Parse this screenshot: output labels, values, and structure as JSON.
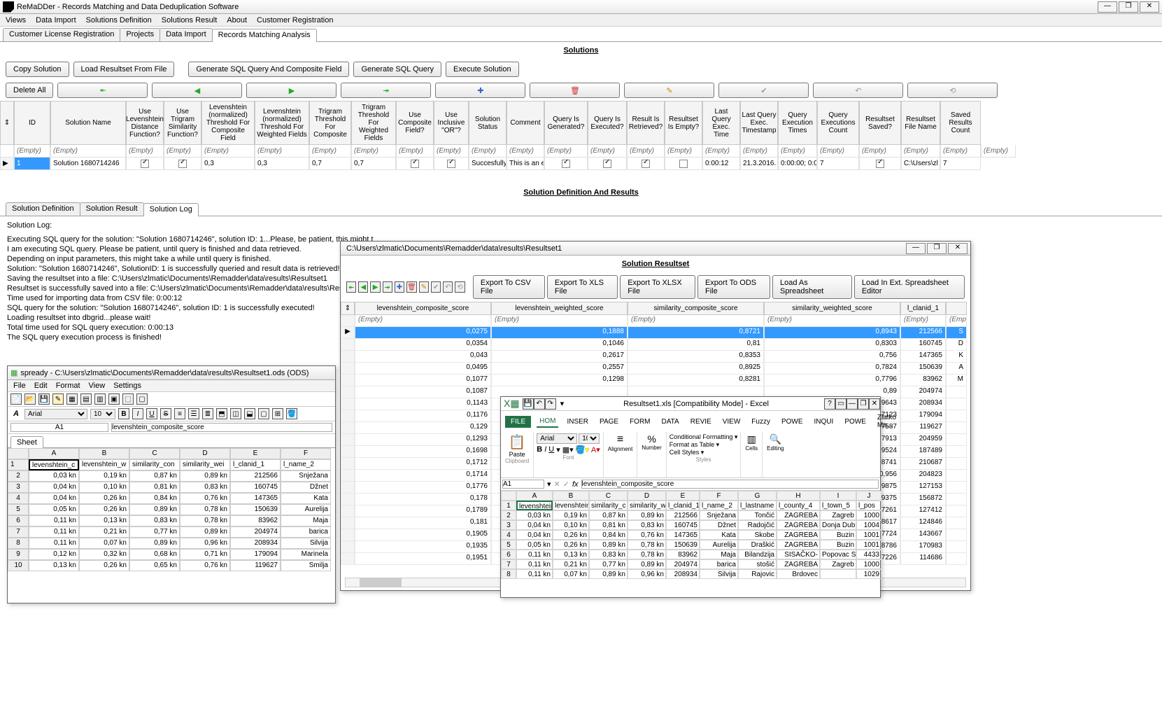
{
  "app": {
    "title": "ReMaDDer - Records Matching and Data Deduplication Software",
    "menu": [
      "Views",
      "Data Import",
      "Solutions Definition",
      "Solutions Result",
      "About",
      "Customer Registration"
    ],
    "mainTabs": [
      "Customer License Registration",
      "Projects",
      "Data Import",
      "Records Matching Analysis"
    ],
    "activeMainTab": 3
  },
  "solutions": {
    "heading": "Solutions",
    "buttons": {
      "copy": "Copy Solution",
      "load": "Load Resultset From File",
      "gen_comp": "Generate SQL Query And Composite Field",
      "gen_sql": "Generate SQL Query",
      "exec": "Execute Solution",
      "delAll": "Delete All"
    },
    "columns": [
      "",
      "ID",
      "Solution Name",
      "Use Levenshtein Distance Function?",
      "Use Trigram Similarity Function?",
      "Levenshtein (normalized) Threshold For Composite Field",
      "Levenshtein (normalized) Threshold For Weighted Fields",
      "Trigram Threshold For Composite",
      "Trigram Threshold For Weighted Fields",
      "Use Composite Field?",
      "Use Inclusive \"OR\"?",
      "Solution Status",
      "Comment",
      "Query Is Generated?",
      "Query Is Executed?",
      "Result Is Retrieved?",
      "Resultset Is Empty?",
      "Last Query Exec. Time",
      "Last Query Exec. Timestamp",
      "Query Execution Times",
      "Query Executions Count",
      "Resultset Saved?",
      "Resultset File Name",
      "Saved Results Count"
    ],
    "filter": "(Empty)",
    "row": {
      "marker": "▶",
      "id": "1",
      "name": "Solution 1680714246",
      "lev": "on",
      "tri": "on",
      "levc": "0,3",
      "levw": "0,3",
      "tric": "0,7",
      "triw": "0,7",
      "comp": "on",
      "or": "on",
      "status": "Succesfully",
      "comment": "This is an e",
      "gen": "on",
      "exec": "on",
      "retr": "on",
      "empty": "off",
      "time": "0:00:12",
      "ts": "21.3.2016. 1",
      "times": "0:00:00; 0:0",
      "count": "7",
      "saved": "on",
      "file": "C:\\Users\\zl",
      "sc": "7"
    }
  },
  "def": {
    "heading": "Solution Definition And Results",
    "tabs": [
      "Solution Definition",
      "Solution Result",
      "Solution Log"
    ],
    "activeTab": 2,
    "logTitle": "Solution Log:",
    "log": [
      "Executing SQL query for the solution: \"Solution 1680714246\", solution ID: 1...Please, be patient, this might t",
      "I am executing SQL query. Please be patient, until query is finished and data retrieved.",
      "Depending on input parameters, this might take a while until query is finished.",
      "Solution: \"Solution 1680714246\", SolutionID: 1 is successfully queried and result data is retrieved!",
      "Saving the resultset into a file: C:\\Users\\zlmatic\\Documents\\Remadder\\data\\results\\Resultset1",
      "Resultset is successfully saved into a file: C:\\Users\\zlmatic\\Documents\\Remadder\\data\\results\\Resultset1",
      "Time used for importing data from CSV file: 0:00:12",
      "SQL query for the solution: \"Solution 1680714246\", solution ID: 1 is successfully executed!",
      "Loading resultset into dbgrid...please wait!",
      "Total time used for SQL query execution: 0:00:13",
      "The SQL query execution process is finished!"
    ]
  },
  "rs": {
    "title": "C:\\Users\\zlmatic\\Documents\\Remadder\\data\\results\\Resultset1",
    "heading": "Solution Resultset",
    "buttons": {
      "csv": "Export To CSV File",
      "xls": "Export To XLS File",
      "xlsx": "Export To XLSX File",
      "ods": "Export To ODS File",
      "spread": "Load As Spreadsheet",
      "ext": "Load In Ext. Spreadsheet Editor"
    },
    "cols": [
      "levenshtein_composite_score",
      "levenshtein_weighted_score",
      "similarity_composite_score",
      "similarity_weighted_score",
      "l_clanid_1",
      ""
    ],
    "rows": [
      [
        "0,0275",
        "0,1888",
        "0,8721",
        "0,8943",
        "212566",
        "S"
      ],
      [
        "0,0354",
        "0,1046",
        "0,81",
        "0,8303",
        "160745",
        "D"
      ],
      [
        "0,043",
        "0,2617",
        "0,8353",
        "0,756",
        "147365",
        "K"
      ],
      [
        "0,0495",
        "0,2557",
        "0,8925",
        "0,7824",
        "150639",
        "A"
      ],
      [
        "0,1077",
        "0,1298",
        "0,8281",
        "0,7796",
        "83962",
        "M"
      ],
      [
        "0,1087",
        "",
        "",
        "0,89",
        "204974",
        ""
      ],
      [
        "0,1143",
        "",
        "",
        "0,9643",
        "208934",
        ""
      ],
      [
        "0,1176",
        "",
        "",
        "0,7123",
        "179094",
        ""
      ],
      [
        "0,129",
        "",
        "",
        "0,7587",
        "119627",
        ""
      ],
      [
        "0,1293",
        "",
        "",
        "0,7913",
        "204959",
        ""
      ],
      [
        "0,1698",
        "",
        "",
        "0,9524",
        "187489",
        ""
      ],
      [
        "0,1712",
        "",
        "",
        "0,8741",
        "210687",
        ""
      ],
      [
        "0,1714",
        "",
        "",
        "0,956",
        "204823",
        ""
      ],
      [
        "0,1776",
        "",
        "",
        "0,9875",
        "127153",
        ""
      ],
      [
        "0,178",
        "",
        "",
        "0,9375",
        "156872",
        ""
      ],
      [
        "0,1789",
        "",
        "",
        "0,7261",
        "127412",
        ""
      ],
      [
        "0,181",
        "",
        "",
        "0,8617",
        "124846",
        ""
      ],
      [
        "0,1905",
        "",
        "",
        "0,7724",
        "143667",
        ""
      ],
      [
        "0,1935",
        "",
        "",
        "0,8786",
        "170983",
        ""
      ],
      [
        "0,1951",
        "",
        "",
        "0,7226",
        "114686",
        ""
      ]
    ]
  },
  "ods": {
    "title": "spready - C:\\Users\\zlmatic\\Documents\\Remadder\\data\\results\\Resultset1.ods (ODS)",
    "menu": [
      "File",
      "Edit",
      "Format",
      "View",
      "Settings"
    ],
    "font": "Arial",
    "size": "10",
    "cellref": "A1",
    "formula": "levenshtein_composite_score",
    "sheet": "Sheet",
    "cols": [
      "",
      "A",
      "B",
      "C",
      "D",
      "E",
      "F"
    ],
    "rows": [
      [
        "1",
        "levenshtein_c",
        "levenshtein_w",
        "similarity_con",
        "similarity_wei",
        "l_clanid_1",
        "l_name_2"
      ],
      [
        "2",
        "0,03 kn",
        "0,19 kn",
        "0,87 kn",
        "0,89 kn",
        "212566",
        "Snježana"
      ],
      [
        "3",
        "0,04 kn",
        "0,10 kn",
        "0,81 kn",
        "0,83 kn",
        "160745",
        "Džnet"
      ],
      [
        "4",
        "0,04 kn",
        "0,26 kn",
        "0,84 kn",
        "0,76 kn",
        "147365",
        "Kata"
      ],
      [
        "5",
        "0,05 kn",
        "0,26 kn",
        "0,89 kn",
        "0,78 kn",
        "150639",
        "Aurelija"
      ],
      [
        "6",
        "0,11 kn",
        "0,13 kn",
        "0,83 kn",
        "0,78 kn",
        "83962",
        "Maja"
      ],
      [
        "7",
        "0,11 kn",
        "0,21 kn",
        "0,77 kn",
        "0,89 kn",
        "204974",
        "barica"
      ],
      [
        "8",
        "0,11 kn",
        "0,07 kn",
        "0,89 kn",
        "0,96 kn",
        "208934",
        "Silvija"
      ],
      [
        "9",
        "0,12 kn",
        "0,32 kn",
        "0,68 kn",
        "0,71 kn",
        "179094",
        "Marinela"
      ],
      [
        "10",
        "0,13 kn",
        "0,26 kn",
        "0,65 kn",
        "0,76 kn",
        "119627",
        "Smilja"
      ]
    ]
  },
  "xl": {
    "title": "Resultset1.xls [Compatibility Mode] - Excel",
    "tabs": [
      "HOM",
      "INSER",
      "PAGE",
      "FORM",
      "DATA",
      "REVIE",
      "VIEW",
      "Fuzzy",
      "POWE",
      "INQUI",
      "POWE",
      "Zlatko Ma..."
    ],
    "file": "FILE",
    "groups": {
      "clip": "Clipboard",
      "font": "Font",
      "align": "Alignment",
      "num": "Number",
      "styles": "Styles",
      "cells": "Cells",
      "edit": "Editing"
    },
    "styleItems": [
      "Conditional Formatting ▾",
      "Format as Table ▾",
      "Cell Styles ▾"
    ],
    "paste": "Paste",
    "font": "Arial",
    "size": "10",
    "cellref": "A1",
    "formula": "levenshtein_composite_score",
    "cols": [
      "",
      "A",
      "B",
      "C",
      "D",
      "E",
      "F",
      "G",
      "H",
      "I",
      "J"
    ],
    "rows": [
      [
        "1",
        "levenshtein",
        "levenshtein",
        "similarity_c",
        "similarity_w",
        "l_clanid_1",
        "l_name_2",
        "l_lastname",
        "l_county_4",
        "l_town_5",
        "l_pos"
      ],
      [
        "2",
        "0,03 kn",
        "0,19 kn",
        "0,87 kn",
        "0,89 kn",
        "212566",
        "Snježana",
        "Tončić",
        "ZAGREBA",
        "Zagreb",
        "1000"
      ],
      [
        "3",
        "0,04 kn",
        "0,10 kn",
        "0,81 kn",
        "0,83 kn",
        "160745",
        "Džnet",
        "Radojčić",
        "ZAGREBA",
        "Donja Dub",
        "1004"
      ],
      [
        "4",
        "0,04 kn",
        "0,26 kn",
        "0,84 kn",
        "0,76 kn",
        "147365",
        "Kata",
        "Skobe",
        "ZAGREBA",
        "Buzin",
        "1001"
      ],
      [
        "5",
        "0,05 kn",
        "0,26 kn",
        "0,89 kn",
        "0,78 kn",
        "150639",
        "Aurelija",
        "Draškić",
        "ZAGREBA",
        "Buzin",
        "1001"
      ],
      [
        "6",
        "0,11 kn",
        "0,13 kn",
        "0,83 kn",
        "0,78 kn",
        "83962",
        "Maja",
        "Bilandzija",
        "SISAČKO-",
        "Popovac S",
        "4433"
      ],
      [
        "7",
        "0,11 kn",
        "0,21 kn",
        "0,77 kn",
        "0,89 kn",
        "204974",
        "barica",
        "stošić",
        "ZAGREBA",
        "Zagreb",
        "1000"
      ],
      [
        "8",
        "0,11 kn",
        "0,07 kn",
        "0,89 kn",
        "0,96 kn",
        "208934",
        "Silvija",
        "Rajovic",
        "Brdovec",
        "",
        "1029"
      ]
    ]
  }
}
